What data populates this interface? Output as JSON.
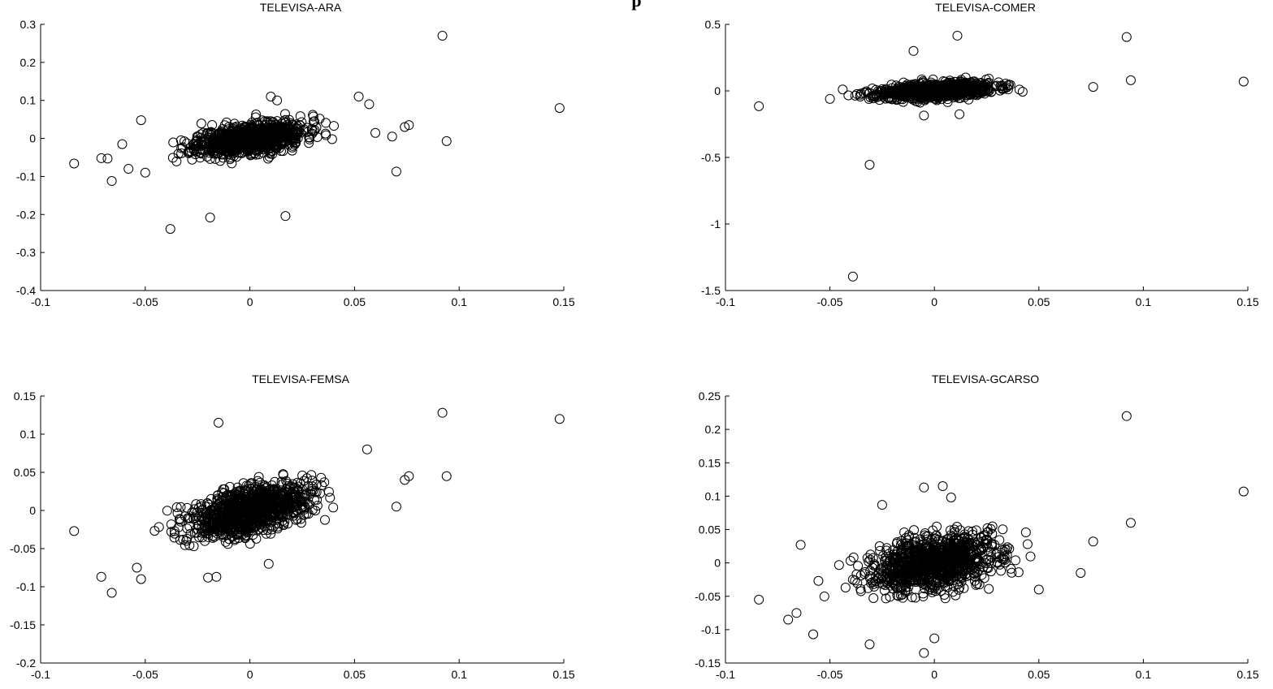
{
  "figure": {
    "title": "p"
  },
  "chart_data": [
    {
      "type": "scatter",
      "title": "TELEVISA-ARA",
      "xlabel": "",
      "ylabel": "",
      "xlim": [
        -0.1,
        0.15
      ],
      "ylim": [
        -0.4,
        0.3
      ],
      "xticks": [
        "-0.1",
        "-0.05",
        "0",
        "0.05",
        "0.1",
        "0.15"
      ],
      "yticks": [
        "-0.4",
        "-0.3",
        "-0.2",
        "-0.1",
        "0",
        "0.1",
        "0.2",
        "0.3"
      ],
      "grid": false,
      "cluster": {
        "n": 900,
        "sx": 0.013,
        "sy": 0.022,
        "rho": 0.45,
        "seed": 11
      },
      "outliers": [
        [
          0.092,
          0.27
        ],
        [
          0.148,
          0.08
        ],
        [
          0.094,
          -0.007
        ],
        [
          0.07,
          -0.087
        ],
        [
          -0.084,
          -0.066
        ],
        [
          -0.066,
          -0.112
        ],
        [
          -0.038,
          -0.238
        ],
        [
          -0.019,
          -0.208
        ],
        [
          0.017,
          -0.204
        ],
        [
          0.013,
          0.1
        ],
        [
          0.052,
          0.11
        ],
        [
          0.074,
          0.03
        ],
        [
          0.076,
          0.035
        ],
        [
          -0.052,
          0.048
        ],
        [
          -0.068,
          -0.053
        ],
        [
          -0.071,
          -0.052
        ],
        [
          -0.05,
          -0.09
        ],
        [
          0.01,
          0.11
        ],
        [
          0.057,
          0.09
        ],
        [
          0.068,
          0.005
        ],
        [
          -0.061,
          -0.015
        ],
        [
          -0.058,
          -0.08
        ]
      ]
    },
    {
      "type": "scatter",
      "title": "TELEVISA-COMER",
      "xlabel": "",
      "ylabel": "",
      "xlim": [
        -0.1,
        0.15
      ],
      "ylim": [
        -1.5,
        0.5
      ],
      "xticks": [
        "-0.1",
        "-0.05",
        "0",
        "0.05",
        "0.1",
        "0.15"
      ],
      "yticks": [
        "-1.5",
        "-1",
        "-0.5",
        "0",
        "0.5"
      ],
      "grid": false,
      "cluster": {
        "n": 900,
        "sx": 0.014,
        "sy": 0.03,
        "rho": 0.35,
        "seed": 23
      },
      "outliers": [
        [
          0.011,
          0.415
        ],
        [
          0.092,
          0.405
        ],
        [
          0.094,
          0.08
        ],
        [
          0.148,
          0.07
        ],
        [
          -0.01,
          0.3
        ],
        [
          -0.031,
          -0.555
        ],
        [
          -0.039,
          -1.395
        ],
        [
          -0.084,
          -0.115
        ],
        [
          0.012,
          -0.175
        ],
        [
          -0.005,
          -0.185
        ],
        [
          -0.05,
          -0.06
        ],
        [
          0.076,
          0.03
        ]
      ]
    },
    {
      "type": "scatter",
      "title": "TELEVISA-FEMSA",
      "xlabel": "",
      "ylabel": "",
      "xlim": [
        -0.1,
        0.15
      ],
      "ylim": [
        -0.2,
        0.15
      ],
      "xticks": [
        "-0.1",
        "-0.05",
        "0",
        "0.05",
        "0.1",
        "0.15"
      ],
      "yticks": [
        "-0.2",
        "-0.15",
        "-0.1",
        "-0.05",
        "0",
        "0.05",
        "0.1",
        "0.15"
      ],
      "grid": false,
      "cluster": {
        "n": 1000,
        "sx": 0.014,
        "sy": 0.018,
        "rho": 0.5,
        "seed": 37
      },
      "outliers": [
        [
          0.092,
          0.128
        ],
        [
          0.148,
          0.12
        ],
        [
          0.094,
          0.045
        ],
        [
          -0.015,
          0.115
        ],
        [
          0.056,
          0.08
        ],
        [
          -0.084,
          -0.027
        ],
        [
          -0.066,
          -0.108
        ],
        [
          -0.071,
          -0.087
        ],
        [
          -0.052,
          -0.09
        ],
        [
          -0.054,
          -0.075
        ],
        [
          0.074,
          0.04
        ],
        [
          0.076,
          0.045
        ],
        [
          0.07,
          0.005
        ],
        [
          -0.02,
          -0.088
        ],
        [
          -0.016,
          -0.087
        ],
        [
          0.009,
          -0.07
        ]
      ]
    },
    {
      "type": "scatter",
      "title": "TELEVISA-GCARSO",
      "xlabel": "",
      "ylabel": "",
      "xlim": [
        -0.1,
        0.15
      ],
      "ylim": [
        -0.15,
        0.25
      ],
      "xticks": [
        "-0.1",
        "-0.05",
        "0",
        "0.05",
        "0.1",
        "0.15"
      ],
      "yticks": [
        "-0.15",
        "-0.1",
        "-0.05",
        "0",
        "0.05",
        "0.1",
        "0.15",
        "0.2",
        "0.25"
      ],
      "grid": false,
      "cluster": {
        "n": 1000,
        "sx": 0.016,
        "sy": 0.024,
        "rho": 0.4,
        "seed": 53
      },
      "outliers": [
        [
          0.092,
          0.22
        ],
        [
          0.148,
          0.107
        ],
        [
          0.094,
          0.06
        ],
        [
          -0.084,
          -0.055
        ],
        [
          -0.07,
          -0.085
        ],
        [
          -0.058,
          -0.107
        ],
        [
          -0.031,
          -0.122
        ],
        [
          -0.005,
          -0.135
        ],
        [
          0.0,
          -0.113
        ],
        [
          -0.025,
          0.087
        ],
        [
          -0.005,
          0.113
        ],
        [
          0.004,
          0.115
        ],
        [
          0.008,
          0.098
        ],
        [
          0.076,
          0.032
        ],
        [
          0.07,
          -0.015
        ],
        [
          0.05,
          -0.04
        ],
        [
          -0.066,
          -0.075
        ],
        [
          -0.064,
          0.027
        ]
      ]
    }
  ]
}
